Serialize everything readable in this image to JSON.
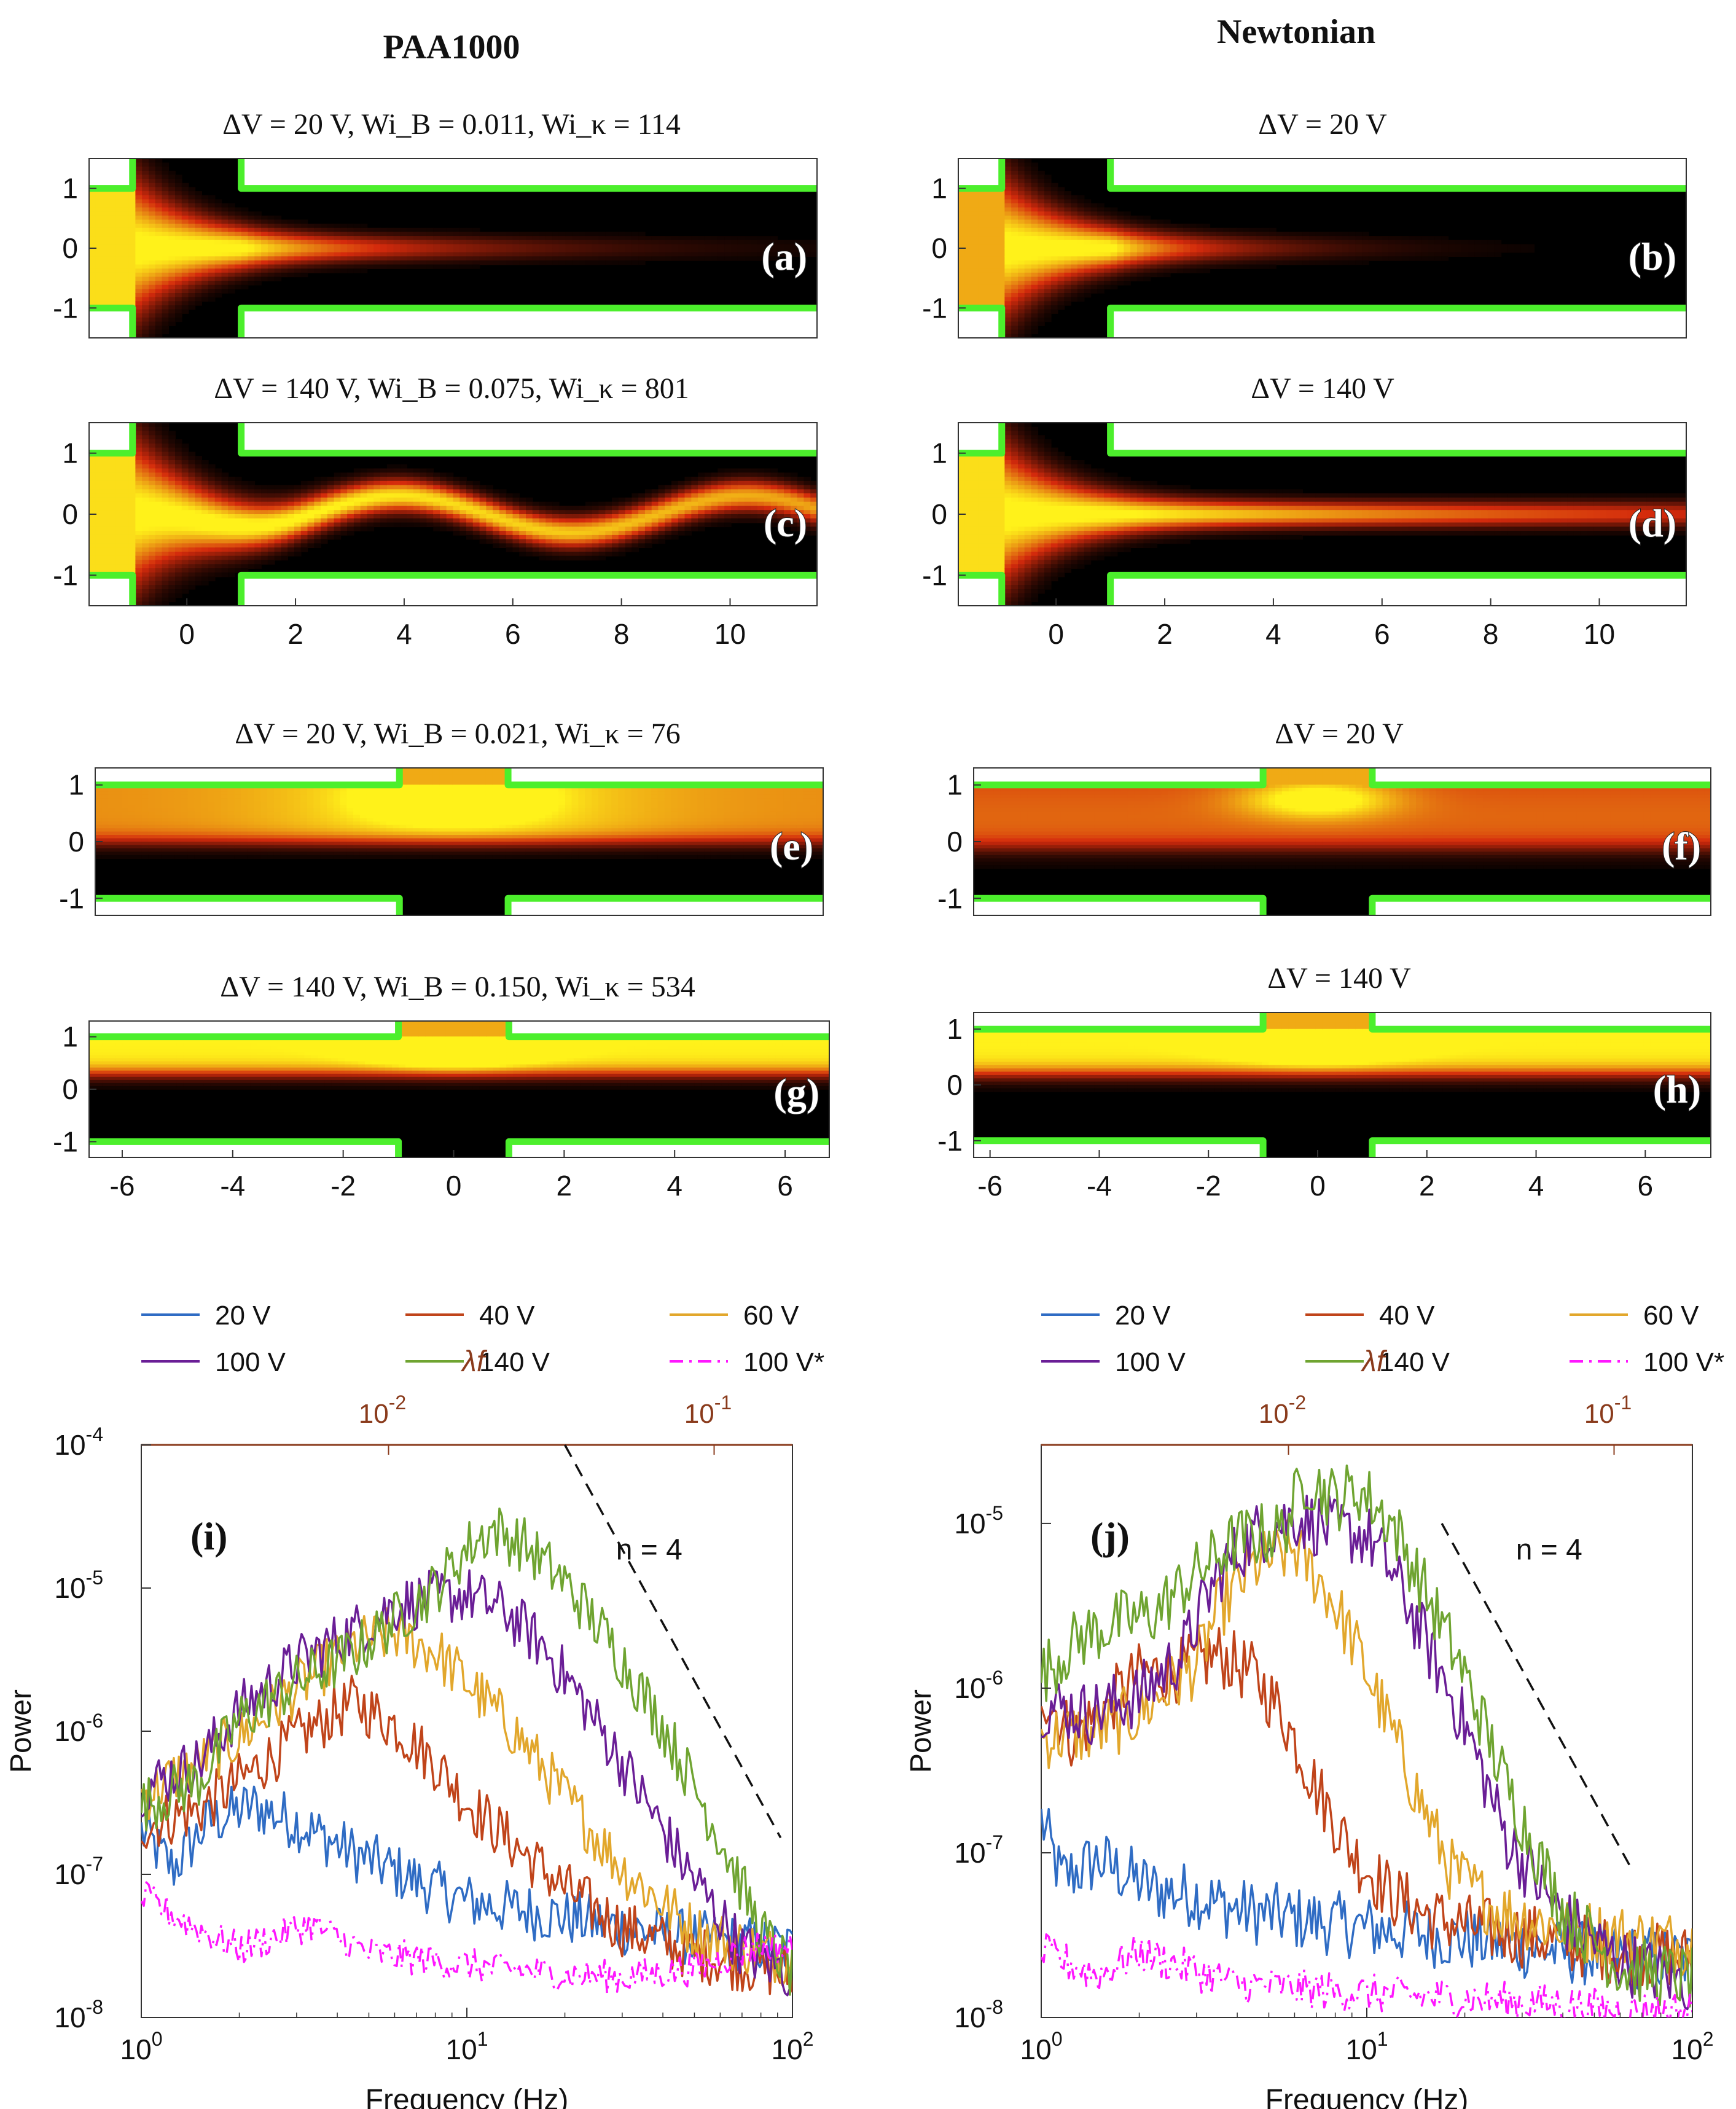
{
  "figure": {
    "column_titles": [
      "PAA1000",
      "Newtonian"
    ],
    "colors": {
      "wall": "#4cef2c",
      "heat_dark": "#000000",
      "heat_mid": "#d42a0c",
      "heat_bright": "#fff21a",
      "series_20V": "#2f6cc4",
      "series_40V": "#c0441a",
      "series_60V": "#e2a72c",
      "series_100V": "#6a1e96",
      "series_140V": "#6fa431",
      "series_100V_star": "#ff17ff",
      "top_axis": "#8a3b1c"
    }
  },
  "chart_data": [
    {
      "id": "a",
      "type": "heatmap",
      "geometry": "contraction-expansion",
      "label": "(a)",
      "title": "ΔV = 20 V,  Wi_B = 0.011,  Wi_κ = 114",
      "xlim": [
        -1.8,
        11.6
      ],
      "ylim": [
        -1.5,
        1.5
      ],
      "xticks": [],
      "yticks": [
        "1",
        "0",
        "-1"
      ],
      "pattern": "jet decays by x≈6",
      "jet_amplitude": 0,
      "decay_length": 3.5
    },
    {
      "id": "b",
      "type": "heatmap",
      "geometry": "contraction-expansion",
      "label": "(b)",
      "title": "ΔV = 20 V",
      "xlim": [
        -1.8,
        11.6
      ],
      "ylim": [
        -1.5,
        1.5
      ],
      "xticks": [],
      "yticks": [
        "1",
        "0",
        "-1"
      ],
      "pattern": "weak diffuse jet",
      "jet_amplitude": 0,
      "decay_length": 2.2
    },
    {
      "id": "c",
      "type": "heatmap",
      "geometry": "contraction-expansion",
      "label": "(c)",
      "title": "ΔV = 140 V,  Wi_B = 0.075,  Wi_κ = 801",
      "xlim": [
        -1.8,
        11.6
      ],
      "ylim": [
        -1.5,
        1.5
      ],
      "xticks": [
        "0",
        "2",
        "4",
        "6",
        "8",
        "10"
      ],
      "yticks": [
        "1",
        "0",
        "-1"
      ],
      "pattern": "wavy jet",
      "jet_amplitude": 0.3,
      "decay_length": 40
    },
    {
      "id": "d",
      "type": "heatmap",
      "geometry": "contraction-expansion",
      "label": "(d)",
      "title": "ΔV = 140 V",
      "xlim": [
        -1.8,
        11.6
      ],
      "ylim": [
        -1.5,
        1.5
      ],
      "xticks": [
        "0",
        "2",
        "4",
        "6",
        "8",
        "10"
      ],
      "yticks": [
        "1",
        "0",
        "-1"
      ],
      "pattern": "straight jet",
      "jet_amplitude": 0,
      "decay_length": 14
    },
    {
      "id": "e",
      "type": "heatmap",
      "geometry": "side-cavity",
      "label": "(e)",
      "title": "ΔV = 20 V,  Wi_B = 0.021,  Wi_κ = 76",
      "xlim": [
        -6.6,
        6.8
      ],
      "ylim": [
        -1.3,
        1.3
      ],
      "xticks": [],
      "yticks": [
        "1",
        "0",
        "-1"
      ],
      "pattern": "bright upper half",
      "boundary": 0.0
    },
    {
      "id": "f",
      "type": "heatmap",
      "geometry": "side-cavity",
      "label": "(f)",
      "title": "ΔV = 20 V",
      "xlim": [
        -6.3,
        7.2
      ],
      "ylim": [
        -1.3,
        1.3
      ],
      "xticks": [],
      "yticks": [
        "1",
        "0",
        "-1"
      ],
      "pattern": "red band, bright near cavity",
      "boundary": -0.1
    },
    {
      "id": "g",
      "type": "heatmap",
      "geometry": "side-cavity",
      "label": "(g)",
      "title": "ΔV = 140 V,  Wi_B = 0.150,  Wi_κ = 534",
      "xlim": [
        -6.6,
        6.8
      ],
      "ylim": [
        -1.3,
        1.3
      ],
      "xticks": [
        "-6",
        "-4",
        "-2",
        "0",
        "2",
        "4",
        "6"
      ],
      "yticks": [
        "1",
        "0",
        "-1"
      ],
      "pattern": "bright band y>0.3",
      "boundary": 0.3
    },
    {
      "id": "h",
      "type": "heatmap",
      "geometry": "side-cavity",
      "label": "(h)",
      "title": "ΔV = 140 V",
      "xlim": [
        -6.3,
        7.2
      ],
      "ylim": [
        -1.3,
        1.3
      ],
      "xticks": [
        "-6",
        "-4",
        "-2",
        "0",
        "2",
        "4",
        "6"
      ],
      "yticks": [
        "1",
        "0",
        "-1"
      ],
      "pattern": "bright band y>0.2",
      "boundary": 0.2
    },
    {
      "id": "i",
      "type": "line",
      "scale": "log-log",
      "label": "(i)",
      "xlabel": "Frequency (Hz)",
      "ylabel": "Power",
      "top_xlabel": "λf",
      "xlim": [
        1,
        100
      ],
      "ylim": [
        1e-08,
        0.0001
      ],
      "top_ticks": [
        {
          "at": 0.01,
          "label": "10-2"
        },
        {
          "at": 0.1,
          "label": "10-1"
        }
      ],
      "top_ratio": 0.00174,
      "annotation": "n = 4",
      "guide": {
        "x": [
          20,
          92
        ],
        "y": [
          0.0001,
          1.8e-07
        ]
      },
      "legend": [
        "20 V",
        "40 V",
        "60 V",
        "100 V",
        "140 V",
        "100 V*"
      ],
      "series": [
        {
          "name": "20 V",
          "key": "series_20V",
          "f": [
            1,
            1.25,
            1.6,
            2.2,
            3,
            4.5,
            7,
            10,
            20,
            40,
            100
          ],
          "p": [
            2e-07,
            1.1e-07,
            2.3e-07,
            3e-07,
            2.3e-07,
            1.4e-07,
            9e-08,
            6.5e-08,
            5e-08,
            3.8e-08,
            3e-08
          ]
        },
        {
          "name": "40 V",
          "key": "series_40V",
          "f": [
            1,
            1.5,
            2,
            3,
            4.5,
            6,
            8,
            10,
            14,
            20,
            30,
            50,
            100
          ],
          "p": [
            2.2e-07,
            2.8e-07,
            4.5e-07,
            9e-07,
            1.6e-06,
            1.1e-06,
            6e-07,
            3.2e-07,
            1.6e-07,
            8e-08,
            4.2e-08,
            2.8e-08,
            2e-08
          ]
        },
        {
          "name": "60 V",
          "key": "series_60V",
          "f": [
            1,
            1.5,
            2,
            3,
            4.5,
            6,
            8,
            10,
            14,
            20,
            30,
            50,
            100
          ],
          "p": [
            3.5e-07,
            6e-07,
            9e-07,
            2e-06,
            4e-06,
            4.8e-06,
            3.6e-06,
            2.2e-06,
            1e-06,
            3.5e-07,
            1.1e-07,
            4e-08,
            2.5e-08
          ]
        },
        {
          "name": "100 V",
          "key": "series_100V",
          "f": [
            1,
            1.5,
            2,
            3,
            4.5,
            6,
            8,
            10,
            13,
            17,
            22,
            30,
            45,
            70,
            100
          ],
          "p": [
            4e-07,
            6e-07,
            1.4e-06,
            3e-06,
            5e-06,
            7.5e-06,
            8.5e-06,
            9e-06,
            7e-06,
            4e-06,
            1.8e-06,
            6e-07,
            1.3e-07,
            3e-08,
            2e-08
          ]
        },
        {
          "name": "140 V",
          "key": "series_140V",
          "f": [
            1,
            1.5,
            2,
            3,
            4.5,
            6,
            8,
            10,
            12,
            15,
            20,
            28,
            40,
            60,
            80,
            100
          ],
          "p": [
            3e-07,
            4.5e-07,
            1.2e-06,
            2.2e-06,
            3.5e-06,
            6e-06,
            1e-05,
            1.9e-05,
            2.6e-05,
            2e-05,
            1.1e-05,
            4e-06,
            1.1e-06,
            1.8e-07,
            4e-08,
            2e-08
          ]
        },
        {
          "name": "100 V*",
          "key": "series_100V_star",
          "dash": true,
          "f": [
            1,
            1.4,
            2,
            3.3,
            5,
            8,
            12,
            20,
            30,
            50,
            80,
            100
          ],
          "p": [
            7e-08,
            4.5e-08,
            3e-08,
            4.5e-08,
            2.8e-08,
            2.5e-08,
            2.2e-08,
            2e-08,
            1.9e-08,
            2.2e-08,
            3.2e-08,
            3e-08
          ]
        }
      ]
    },
    {
      "id": "j",
      "type": "line",
      "scale": "log-log",
      "label": "(j)",
      "xlabel": "Frequency (Hz)",
      "ylabel": "Power",
      "top_xlabel": "λf",
      "xlim": [
        1,
        100
      ],
      "ylim": [
        1e-08,
        3e-05
      ],
      "top_ticks": [
        {
          "at": 0.01,
          "label": "10-2"
        },
        {
          "at": 0.1,
          "label": "10-1"
        }
      ],
      "top_ratio": 0.00174,
      "annotation": "n = 4",
      "guide": {
        "x": [
          17,
          65
        ],
        "y": [
          1e-05,
          8e-08
        ]
      },
      "legend": [
        "20 V",
        "40 V",
        "60 V",
        "100 V",
        "140 V",
        "100 V*"
      ],
      "series": [
        {
          "name": "20 V",
          "key": "series_20V",
          "f": [
            1,
            1.15,
            1.5,
            2.2,
            3,
            4,
            6,
            10,
            20,
            40,
            100
          ],
          "p": [
            1.6e-07,
            7e-08,
            9e-08,
            6e-08,
            5.5e-08,
            4.5e-08,
            4e-08,
            3.5e-08,
            3e-08,
            2.5e-08,
            2.2e-08
          ]
        },
        {
          "name": "40 V",
          "key": "series_40V",
          "f": [
            1,
            1.25,
            1.6,
            2,
            2.7,
            3.5,
            4.5,
            5.5,
            7,
            9,
            12,
            16,
            22,
            35,
            60,
            100
          ],
          "p": [
            1e-06,
            5e-07,
            8e-07,
            1.2e-06,
            1.3e-06,
            1.6e-06,
            1.2e-06,
            7e-07,
            2.5e-07,
            1e-07,
            5.5e-08,
            4e-08,
            3.5e-08,
            3e-08,
            2.5e-08,
            2.3e-08
          ]
        },
        {
          "name": "60 V",
          "key": "series_60V",
          "f": [
            1,
            1.5,
            2,
            3,
            3.5,
            4.5,
            6,
            7.5,
            9,
            11,
            14,
            18,
            25,
            40,
            70,
            100
          ],
          "p": [
            5e-07,
            5.5e-07,
            7e-07,
            1.4e-06,
            3e-06,
            5.5e-06,
            7e-06,
            4e-06,
            2e-06,
            8e-07,
            2.5e-07,
            8e-08,
            4.5e-08,
            3.5e-08,
            3e-08,
            2.8e-08
          ]
        },
        {
          "name": "100 V",
          "key": "series_100V",
          "f": [
            1,
            1.4,
            2,
            2.7,
            3.5,
            4.5,
            6,
            8,
            10,
            12,
            15,
            20,
            27,
            40,
            60,
            100
          ],
          "p": [
            8e-07,
            7e-07,
            9e-07,
            1.6e-06,
            5e-06,
            8.5e-06,
            1.1e-05,
            9e-06,
            8.5e-06,
            5e-06,
            2e-06,
            6e-07,
            1.2e-07,
            4e-08,
            2.2e-08,
            1.6e-08
          ]
        },
        {
          "name": "140 V",
          "key": "series_140V",
          "f": [
            1,
            1.3,
            1.7,
            2.2,
            3,
            4,
            5.5,
            6.5,
            8,
            9.5,
            12,
            15,
            20,
            27,
            40,
            60,
            100
          ],
          "p": [
            1.2e-06,
            2e-06,
            2.5e-06,
            2.8e-06,
            5e-06,
            8e-06,
            9e-06,
            1.9e-05,
            1.4e-05,
            1.6e-05,
            1e-05,
            4e-06,
            1.2e-06,
            2.5e-07,
            4.5e-08,
            2e-08,
            1.7e-08
          ]
        },
        {
          "name": "100 V*",
          "key": "series_100V_star",
          "dash": true,
          "f": [
            1,
            1.5,
            2,
            3,
            4,
            6,
            10,
            20,
            40,
            60,
            100
          ],
          "p": [
            2.5e-08,
            1.8e-08,
            2.5e-08,
            1.9e-08,
            1.6e-08,
            1.5e-08,
            1.4e-08,
            1.3e-08,
            1.2e-08,
            1.1e-08,
            1.1e-08
          ]
        }
      ]
    }
  ]
}
